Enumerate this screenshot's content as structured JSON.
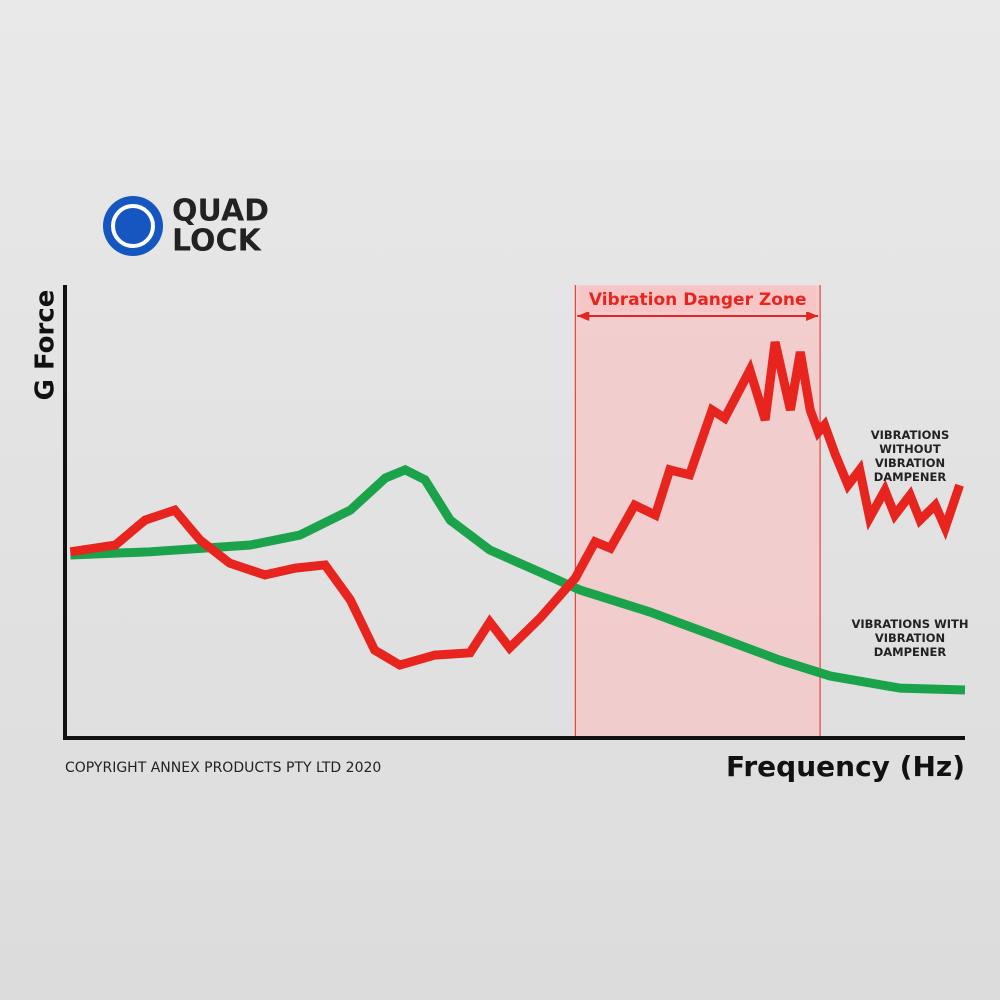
{
  "logo": {
    "lines": [
      "QUAD",
      "LOCK"
    ]
  },
  "chart_data": {
    "type": "line",
    "xlabel": "Frequency (Hz)",
    "ylabel": "G Force",
    "note": "COPYRIGHT ANNEX PRODUCTS PTY LTD 2020",
    "xlim": [
      0,
      100
    ],
    "ylim": [
      0,
      100
    ],
    "zone": {
      "label": "Vibration Danger Zone",
      "x": [
        56.7,
        83.9
      ],
      "color": "#f7c5c5"
    },
    "series": [
      {
        "name": "VIBRATIONS WITHOUT VIBRATION DAMPENER",
        "color": "#e8241f",
        "x": [
          0.6,
          5.6,
          8.9,
          12.2,
          15.0,
          18.3,
          22.2,
          25.6,
          28.9,
          31.7,
          34.4,
          37.2,
          41.1,
          45.0,
          47.2,
          49.4,
          52.8,
          56.7,
          58.9,
          60.6,
          63.3,
          65.6,
          67.2,
          69.4,
          71.9,
          73.3,
          76.1,
          77.8,
          78.9,
          80.6,
          81.7,
          82.8,
          83.7,
          84.4,
          85.6,
          87.0,
          88.3,
          89.4,
          91.1,
          92.2,
          93.9,
          95.0,
          96.7,
          97.8,
          99.4
        ],
        "values": [
          41.1,
          42.6,
          48.1,
          50.3,
          43.7,
          38.6,
          36.0,
          37.5,
          38.2,
          30.5,
          19.4,
          16.1,
          18.3,
          18.8,
          25.6,
          19.9,
          26.5,
          35.3,
          43.3,
          41.9,
          51.4,
          49.2,
          59.2,
          58.1,
          72.4,
          70.6,
          81.2,
          70.2,
          87.4,
          72.4,
          85.2,
          72.4,
          67.5,
          69.1,
          62.5,
          55.8,
          59.2,
          48.6,
          54.7,
          49.2,
          53.6,
          48.1,
          51.4,
          46.4,
          55.8
        ]
      },
      {
        "name": "VIBRATIONS WITH VIBRATION DAMPENER",
        "color": "#1aa34a",
        "x": [
          0.6,
          9.4,
          20.6,
          26.1,
          31.7,
          35.6,
          37.8,
          40.0,
          42.8,
          47.2,
          52.8,
          57.2,
          65.0,
          72.8,
          79.4,
          85.0,
          92.8,
          100
        ],
        "values": [
          40.4,
          41.1,
          42.6,
          44.8,
          50.3,
          57.4,
          59.2,
          57.0,
          48.1,
          41.5,
          36.6,
          32.7,
          27.8,
          22.1,
          17.2,
          13.7,
          11.0,
          10.6
        ]
      }
    ]
  }
}
